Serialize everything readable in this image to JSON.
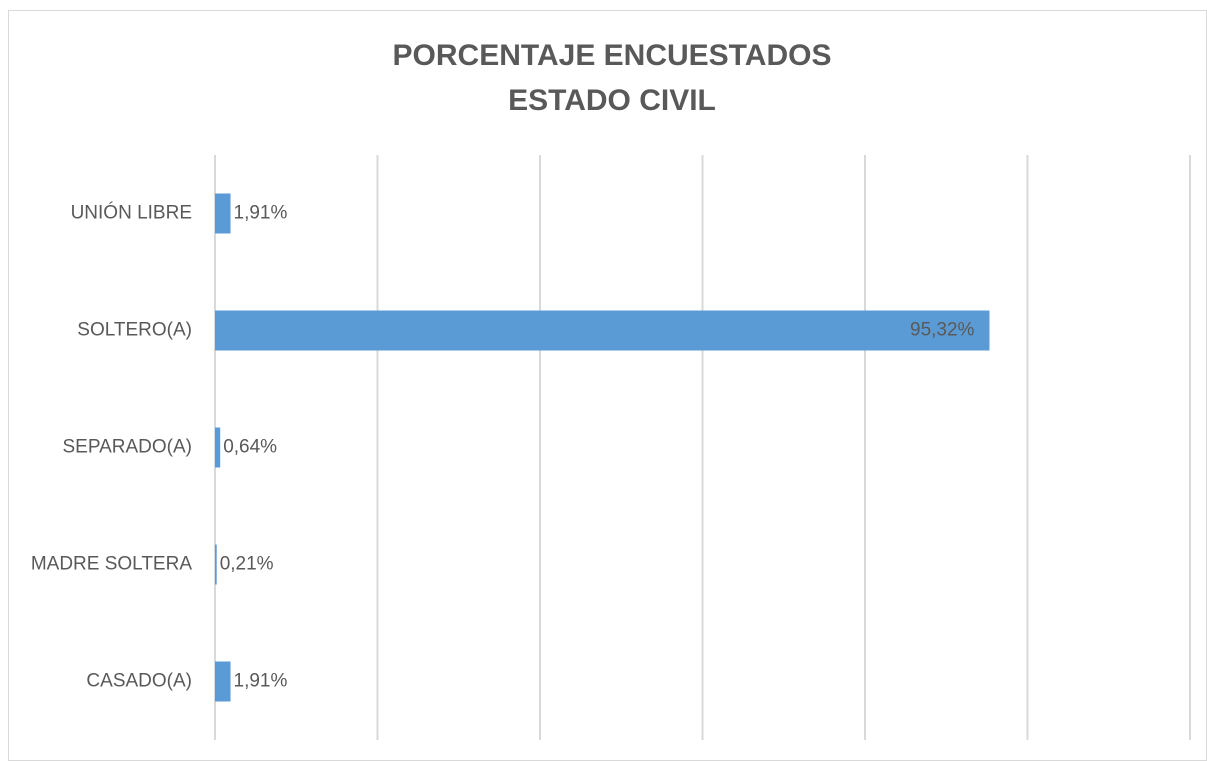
{
  "chart_data": {
    "type": "barh",
    "title": [
      "PORCENTAJE ENCUESTADOS",
      "ESTADO CIVIL"
    ],
    "categories": [
      "UNIÓN LIBRE",
      "SOLTERO(A)",
      "SEPARADO(A)",
      "MADRE SOLTERA",
      "CASADO(A)"
    ],
    "values": [
      1.91,
      95.32,
      0.64,
      0.21,
      1.91
    ],
    "value_labels": [
      "1,91%",
      "95,32%",
      "0,64%",
      "0,21%",
      "1,91%"
    ],
    "color": "#5b9bd5",
    "xlim": [
      0,
      120
    ],
    "xticks": [
      0,
      20,
      40,
      60,
      80,
      100,
      120
    ],
    "grid": true
  }
}
